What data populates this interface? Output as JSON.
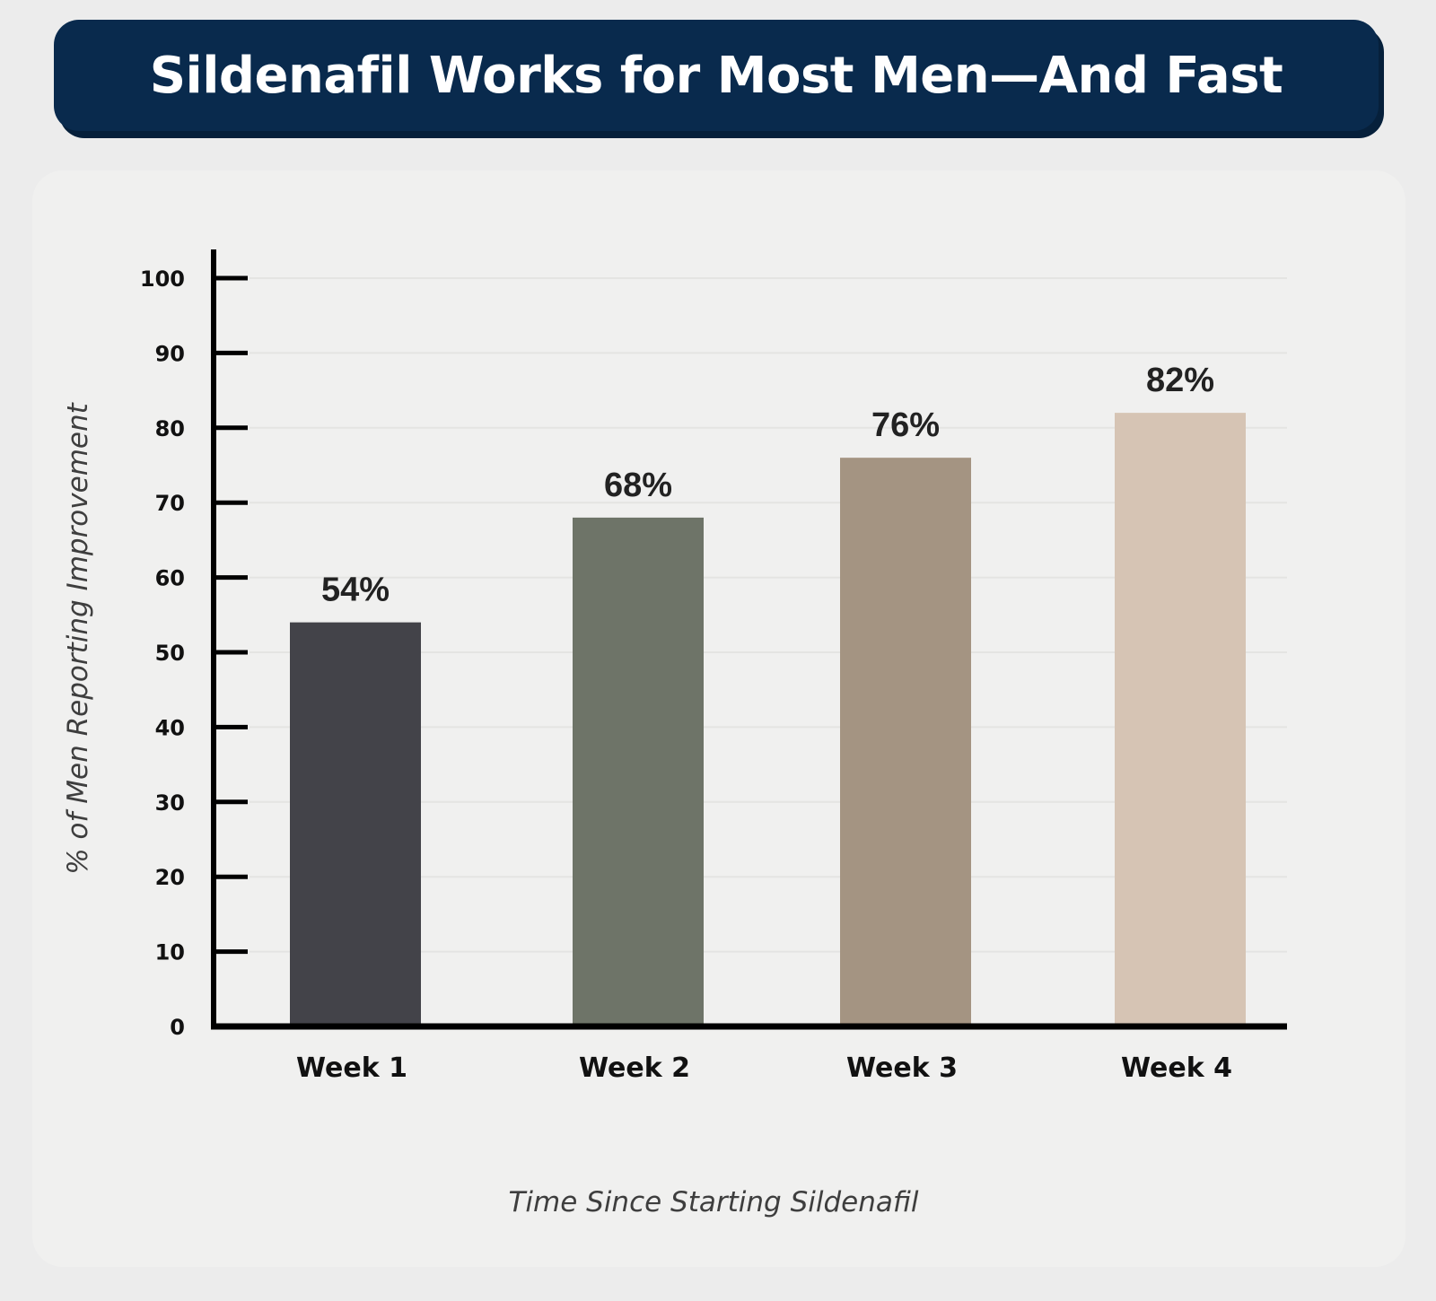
{
  "title": "Sildenafil Works for Most Men—And Fast",
  "chart_data": {
    "type": "bar",
    "categories": [
      "Week 1",
      "Week 2",
      "Week 3",
      "Week 4"
    ],
    "values": [
      54,
      68,
      76,
      82
    ],
    "value_labels": [
      "54%",
      "68%",
      "76%",
      "82%"
    ],
    "bar_colors": [
      "#434349",
      "#6e7468",
      "#a49482",
      "#d6c4b4"
    ],
    "xlabel": "Time Since Starting Sildenafil",
    "ylabel": "% of Men Reporting Improvement",
    "ylim": [
      0,
      100
    ],
    "yticks": [
      0,
      10,
      20,
      30,
      40,
      50,
      60,
      70,
      80,
      90,
      100
    ],
    "grid": true,
    "legend": false
  }
}
